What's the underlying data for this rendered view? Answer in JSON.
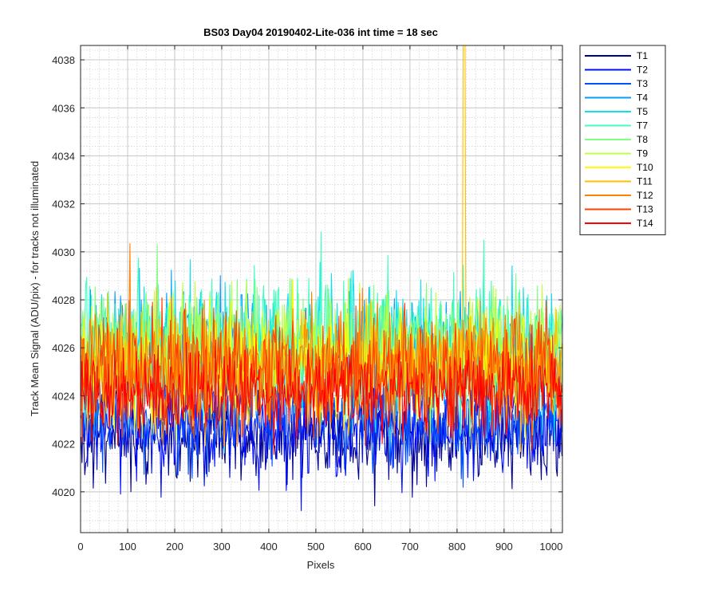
{
  "chart_data": {
    "type": "line",
    "title": "BS03 Day04 20190402-Lite-036 int time = 18 sec",
    "xlabel": "Pixels",
    "ylabel": "Track Mean Signal (ADU/pix) - for tracks not illuminated",
    "xlim": [
      0,
      1024
    ],
    "ylim": [
      4018.3,
      4038.6
    ],
    "xticks": [
      0,
      100,
      200,
      300,
      400,
      500,
      600,
      700,
      800,
      900,
      1000
    ],
    "yticks": [
      4020,
      4022,
      4024,
      4026,
      4028,
      4030,
      4032,
      4034,
      4036,
      4038
    ],
    "grid": true,
    "minor_grid": true,
    "legend_position": "outside-top-right",
    "series": [
      {
        "name": "T1",
        "color": "#00008F",
        "mean": 4022.4,
        "noise": 0.9
      },
      {
        "name": "T2",
        "color": "#0010FF",
        "mean": 4022.6,
        "noise": 0.9
      },
      {
        "name": "T3",
        "color": "#0050FF",
        "mean": 4023.2,
        "noise": 1.0
      },
      {
        "name": "T4",
        "color": "#00A0FF",
        "mean": 4025.6,
        "noise": 1.3
      },
      {
        "name": "T5",
        "color": "#10DFEF",
        "mean": 4026.0,
        "noise": 1.3
      },
      {
        "name": "T7",
        "color": "#40FFBF",
        "mean": 4026.2,
        "noise": 1.3
      },
      {
        "name": "T8",
        "color": "#80FF80",
        "mean": 4026.0,
        "noise": 1.2
      },
      {
        "name": "T9",
        "color": "#BFFF40",
        "mean": 4025.8,
        "noise": 1.2
      },
      {
        "name": "T10",
        "color": "#FFFF00",
        "mean": 4025.2,
        "noise": 1.1
      },
      {
        "name": "T11",
        "color": "#FFBF00",
        "mean": 4025.0,
        "noise": 1.1,
        "spike": {
          "x": 815,
          "y": 4038.6
        }
      },
      {
        "name": "T12",
        "color": "#FF8000",
        "mean": 4025.2,
        "noise": 1.2
      },
      {
        "name": "T13",
        "color": "#FF4000",
        "mean": 4025.0,
        "noise": 1.2
      },
      {
        "name": "T14",
        "color": "#FF0000",
        "mean": 4024.2,
        "noise": 0.9
      }
    ]
  }
}
